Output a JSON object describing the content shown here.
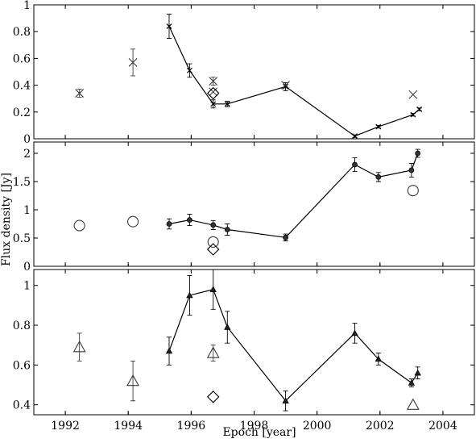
{
  "chart_data": [
    {
      "type": "scatter",
      "panel": "top",
      "title": "",
      "ylim": [
        0,
        1
      ],
      "yticks": [
        0,
        0.2,
        0.4,
        0.6,
        0.8,
        1
      ],
      "ytick_labels": [
        "0",
        "0.2",
        "0.4",
        "0.6",
        "0.8",
        "1"
      ],
      "series": [
        {
          "marker": "x",
          "connected": true,
          "points": [
            {
              "x": 1995.3,
              "y": 0.84,
              "err": 0.09
            },
            {
              "x": 1995.95,
              "y": 0.51,
              "err": 0.05
            },
            {
              "x": 1996.7,
              "y": 0.26,
              "err": 0.03
            },
            {
              "x": 1997.15,
              "y": 0.26,
              "err": 0.02
            },
            {
              "x": 1999.0,
              "y": 0.39,
              "err": 0.03
            },
            {
              "x": 2001.2,
              "y": 0.02,
              "err": 0.01
            },
            {
              "x": 2001.95,
              "y": 0.09,
              "err": 0.01
            },
            {
              "x": 2003.05,
              "y": 0.18,
              "err": 0.01
            },
            {
              "x": 2003.25,
              "y": 0.22,
              "err": 0.01
            }
          ]
        },
        {
          "marker": "X",
          "connected": false,
          "points": [
            {
              "x": 1992.45,
              "y": 0.34,
              "err": 0.03
            },
            {
              "x": 1994.15,
              "y": 0.57,
              "err": 0.1
            },
            {
              "x": 1996.7,
              "y": 0.43,
              "err": 0.03
            },
            {
              "x": 1996.7,
              "y": 0.35,
              "err": 0.0
            },
            {
              "x": 1999.0,
              "y": 0.4,
              "err": 0.0
            },
            {
              "x": 2003.05,
              "y": 0.33,
              "err": 0.0
            }
          ]
        },
        {
          "marker": "diamond-open",
          "connected": false,
          "points": [
            {
              "x": 1996.7,
              "y": 0.34,
              "err": 0.0
            }
          ]
        }
      ]
    },
    {
      "type": "scatter",
      "panel": "middle",
      "title": "",
      "ylim": [
        0,
        2.2
      ],
      "yticks": [
        0,
        0.5,
        1,
        1.5,
        2
      ],
      "ytick_labels": [
        "0",
        "0.5",
        "1",
        "1.5",
        "2"
      ],
      "series": [
        {
          "marker": "circle",
          "connected": true,
          "points": [
            {
              "x": 1995.3,
              "y": 0.75,
              "err": 0.09
            },
            {
              "x": 1995.95,
              "y": 0.82,
              "err": 0.1
            },
            {
              "x": 1996.7,
              "y": 0.73,
              "err": 0.08
            },
            {
              "x": 1997.15,
              "y": 0.65,
              "err": 0.1
            },
            {
              "x": 1999.0,
              "y": 0.51,
              "err": 0.06
            },
            {
              "x": 2001.2,
              "y": 1.8,
              "err": 0.12
            },
            {
              "x": 2001.95,
              "y": 1.58,
              "err": 0.08
            },
            {
              "x": 2003.0,
              "y": 1.7,
              "err": 0.12
            },
            {
              "x": 2003.2,
              "y": 2.0,
              "err": 0.07
            }
          ]
        },
        {
          "marker": "circle-open-large",
          "connected": false,
          "points": [
            {
              "x": 1992.45,
              "y": 0.72
            },
            {
              "x": 1994.15,
              "y": 0.79
            },
            {
              "x": 1996.7,
              "y": 0.43
            },
            {
              "x": 2003.05,
              "y": 1.34
            }
          ]
        },
        {
          "marker": "diamond-open",
          "connected": false,
          "points": [
            {
              "x": 1996.7,
              "y": 0.3
            }
          ]
        }
      ]
    },
    {
      "type": "scatter",
      "panel": "bottom",
      "title": "",
      "xlabel": "Epoch [year]",
      "ylim": [
        0.35,
        1.08
      ],
      "yticks": [
        0.4,
        0.6,
        0.8,
        1
      ],
      "ytick_labels": [
        "0.4",
        "0.6",
        "0.8",
        "1"
      ],
      "series": [
        {
          "marker": "triangle",
          "connected": true,
          "points": [
            {
              "x": 1995.3,
              "y": 0.67,
              "err": 0.07
            },
            {
              "x": 1995.95,
              "y": 0.95,
              "err": 0.1
            },
            {
              "x": 1996.7,
              "y": 0.98,
              "err": 0.1
            },
            {
              "x": 1997.15,
              "y": 0.79,
              "err": 0.08
            },
            {
              "x": 1999.0,
              "y": 0.42,
              "err": 0.05
            },
            {
              "x": 2001.2,
              "y": 0.76,
              "err": 0.05
            },
            {
              "x": 2001.95,
              "y": 0.63,
              "err": 0.03
            },
            {
              "x": 2003.0,
              "y": 0.51,
              "err": 0.02
            },
            {
              "x": 2003.2,
              "y": 0.56,
              "err": 0.03
            }
          ]
        },
        {
          "marker": "triangle-open-large",
          "connected": false,
          "points": [
            {
              "x": 1992.45,
              "y": 0.69,
              "err": 0.07
            },
            {
              "x": 1994.15,
              "y": 0.52,
              "err": 0.1
            },
            {
              "x": 1996.7,
              "y": 0.66,
              "err": 0.04
            },
            {
              "x": 2003.05,
              "y": 0.4,
              "err": 0.0
            }
          ]
        },
        {
          "marker": "diamond-open",
          "connected": false,
          "points": [
            {
              "x": 1996.7,
              "y": 0.44
            }
          ]
        }
      ]
    }
  ],
  "axes": {
    "xlim": [
      1991,
      2005
    ],
    "xticks": [
      1992,
      1994,
      1996,
      1998,
      2000,
      2002,
      2004
    ],
    "xtick_labels": [
      "1992",
      "1994",
      "1996",
      "1998",
      "2000",
      "2002",
      "2004"
    ],
    "xlabel": "Epoch [year]",
    "ylabel": "Flux density [Jy]"
  },
  "style": {
    "line_color": "#000000",
    "open_marker_color": "#3a3a3a"
  }
}
